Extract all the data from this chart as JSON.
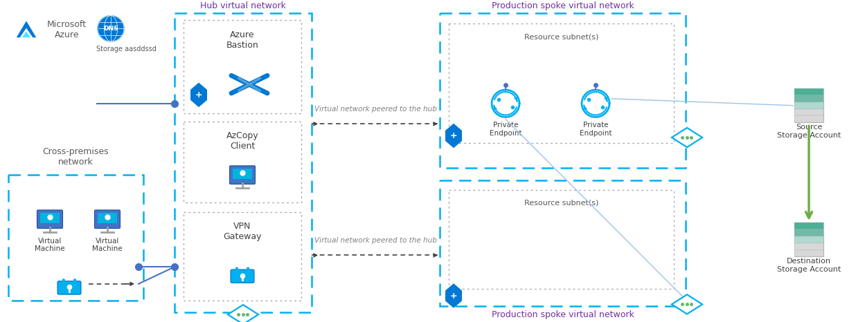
{
  "bg_color": "#ffffff",
  "dash_blue": "#00b0f0",
  "inner_dash": "#aaaaaa",
  "hub_title_color": "#7030a0",
  "prod_title_color": "#7030a0",
  "cross_title_color": "#595959",
  "peer_text_color": "#808080",
  "dot_line_color": "#404040",
  "green_arrow": "#70ad47",
  "blue_line": "#4472c4",
  "text_hub": "Hub virtual network",
  "text_cross": "Cross-premises\nnetwork",
  "text_prod_top": "Production spoke virtual network",
  "text_prod_bot": "Production spoke virtual network",
  "text_res_top": "Resource subnet(s)",
  "text_res_bot": "Resource subnet(s)",
  "text_bastion": "Azure\nBastion",
  "text_azcopy": "AzCopy\nClient",
  "text_vpn": "VPN\nGateway",
  "text_vm1": "Virtual\nMachine",
  "text_vm2": "Virtual\nMachine",
  "text_pe1": "Private\nEndpoint",
  "text_pe2": "Private\nEndpoint",
  "text_source": "Source\nStorage Account",
  "text_dest": "Destination\nStorage Account",
  "text_storage": "Storage aasddssd",
  "text_peer_top": "Virtual network peered to the hub",
  "text_peer_bot": "Virtual network peered to the hub",
  "text_ms_azure": "Microsoft\nAzure",
  "azure_A_color": "#0078d4",
  "azure_A_cyan": "#50e6ff",
  "dns_color": "#0078d4",
  "monitor_body": "#4472c4",
  "monitor_screen": "#00b4e0",
  "lock_color": "#00b0f0",
  "shield_color": "#0078d4",
  "connect_color": "#00b0f0",
  "storage_teal": "#4caf96",
  "storage_teal2": "#70b8a8",
  "storage_gray": "#e0e0e0"
}
